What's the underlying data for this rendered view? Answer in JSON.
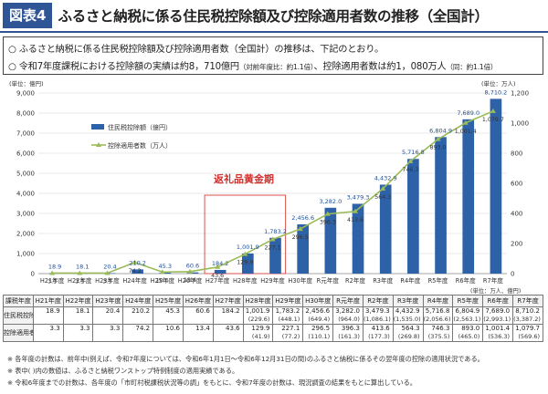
{
  "header": {
    "tag": "図表4",
    "title": "ふるさと納税に係る住民税控除額及び控除適用者数の推移（全国計）"
  },
  "summary": {
    "line1": "○ ふるさと納税に係る住民税控除額及び控除適用者数（全国計）の推移は、下記のとおり。",
    "line2a": "○ 令和7年度課税における控除額の実績は約8，710億円",
    "line2b": "（対前年度比：約1.1倍）",
    "line2c": "、控除適用者数は約1，080万人",
    "line2d": "（同：約1.1倍）"
  },
  "chart_data": {
    "type": "bar",
    "left_axis_unit": "(単位：億円)",
    "right_axis_unit": "(単位：万人)",
    "categories": [
      "H21年度",
      "H22年度",
      "H23年度",
      "H24年度",
      "H25年度",
      "H26年度",
      "H27年度",
      "H28年度",
      "H29年度",
      "H30年度",
      "R元年度",
      "R2年度",
      "R3年度",
      "R4年度",
      "R5年度",
      "R6年度",
      "R7年度"
    ],
    "left_ticks": [
      "0",
      "1,000",
      "2,000",
      "3,000",
      "4,000",
      "5,000",
      "6,000",
      "7,000",
      "8,000",
      "9,000"
    ],
    "right_ticks": [
      "0",
      "200",
      "400",
      "600",
      "800",
      "1,000",
      "1,200"
    ],
    "ylim_left": [
      0,
      9000
    ],
    "ylim_right": [
      0,
      1200
    ],
    "series": [
      {
        "name": "住民税控除額（億円）",
        "axis": "left",
        "kind": "bar",
        "color": "#2e62a8",
        "values": [
          18.9,
          18.1,
          20.4,
          210.2,
          45.3,
          60.6,
          184.2,
          1001.9,
          1783.2,
          2456.6,
          3282.0,
          3479.3,
          4432.9,
          5716.8,
          6804.9,
          7689.0,
          8710.2
        ],
        "labels": [
          "18.9",
          "18.1",
          "20.4",
          "210.2",
          "45.3",
          "60.6",
          "184.2",
          "1,001.9",
          "1,783.2",
          "2,456.6",
          "3,282.0",
          "3,479.3",
          "4,432.9",
          "5,716.8",
          "6,804.9",
          "7,689.0",
          "8,710.2"
        ]
      },
      {
        "name": "控除適用者数（万人）",
        "axis": "right",
        "kind": "line",
        "color": "#9bbb59",
        "values": [
          3.3,
          3.3,
          3.3,
          74.2,
          10.6,
          13.4,
          43.6,
          129.9,
          227.1,
          296.5,
          396.3,
          413.6,
          564.3,
          746.3,
          893.0,
          1001.4,
          1079.7
        ],
        "labels": [
          "3.3",
          "3.3",
          "3.3",
          "74.2",
          "10.6",
          "13.4",
          "43.6",
          "129.9",
          "227.1",
          "296.5",
          "396.3",
          "413.6",
          "564.3",
          "746.3",
          "893.0",
          "1,001.4",
          "1,079.7"
        ]
      }
    ],
    "highlight_label": "返礼品黄金期",
    "highlight_from": "H27年度",
    "highlight_to": "H29年度",
    "grid": true,
    "legend_position": "upper-left"
  },
  "table": {
    "header": [
      "課税年度",
      "H21年度",
      "H22年度",
      "H23年度",
      "H24年度",
      "H25年度",
      "H26年度",
      "H27年度",
      "H28年度",
      "H29年度",
      "H30年度",
      "R元年度",
      "R2年度",
      "R3年度",
      "R4年度",
      "R5年度",
      "R6年度",
      "R7年度"
    ],
    "rows": [
      {
        "label": "住民税控除額",
        "main": [
          "18.9",
          "18.1",
          "20.4",
          "210.2",
          "45.3",
          "60.6",
          "184.2",
          "1,001.9",
          "1,783.2",
          "2,456.6",
          "3,282.0",
          "3,479.3",
          "4,432.9",
          "5,716.8",
          "6,804.9",
          "7,689.0",
          "8,710.2"
        ],
        "sub": [
          "",
          "",
          "",
          "",
          "",
          "",
          "",
          "(229.6)",
          "(448.1)",
          "(649.4)",
          "(964.0)",
          "(1,086.1)",
          "(1,535.0)",
          "(2,056.6)",
          "(2,563.1)",
          "(2,993.1)",
          "(3,387.2)"
        ]
      },
      {
        "label": "控除適用者数",
        "main": [
          "3.3",
          "3.3",
          "3.3",
          "74.2",
          "10.6",
          "13.4",
          "43.6",
          "129.9",
          "227.1",
          "296.5",
          "396.3",
          "413.6",
          "564.3",
          "746.3",
          "893.0",
          "1,001.4",
          "1,079.7"
        ],
        "sub": [
          "",
          "",
          "",
          "",
          "",
          "",
          "",
          "(41.9)",
          "(77.2)",
          "(110.1)",
          "(161.3)",
          "(177.3)",
          "(269.8)",
          "(375.5)",
          "(465.0)",
          "(536.3)",
          "(569.6)"
        ]
      }
    ],
    "unit": "(単位：万人、億円)"
  },
  "notes": [
    "※ 各年度の計数は、前年中(例えば、令和7年度については、令和6年1月1日～令和6年12月31日の間)のふるさと納税に係るその翌年度の控除の適用状況である。",
    "※ 表中( )内の数値は、ふるさと納税ワンストップ特例制度の適用実績である。",
    "※ 令和6年度までの計数は、各年度の「市町村税課税状況等の調」をもとに、令和7年度の計数は、現況調査の結果をもとに算出している。"
  ]
}
